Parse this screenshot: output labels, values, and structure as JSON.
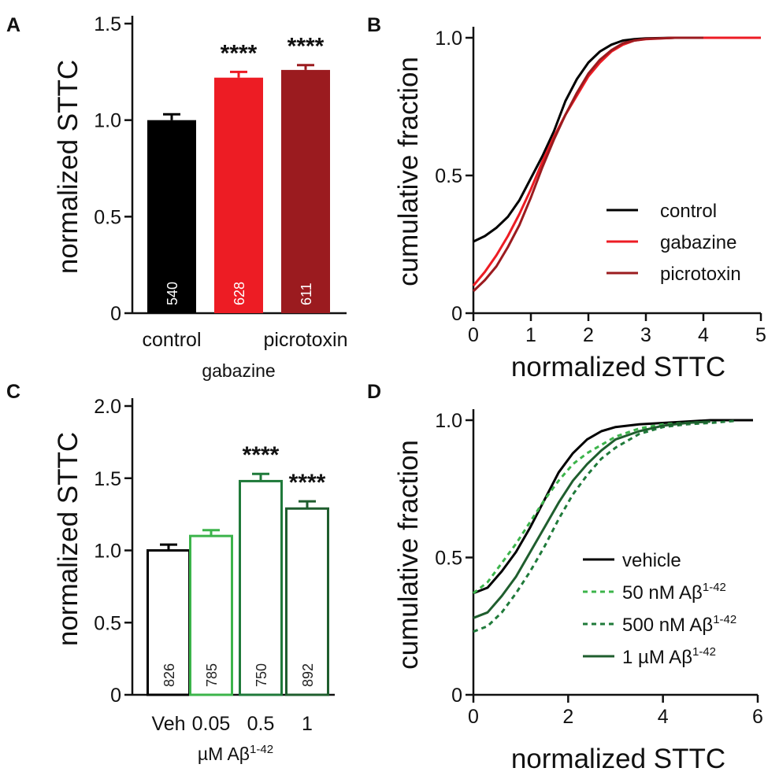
{
  "panels": {
    "A": {
      "letter": "A"
    },
    "B": {
      "letter": "B"
    },
    "C": {
      "letter": "C"
    },
    "D": {
      "letter": "D"
    }
  },
  "chart_data": [
    {
      "type": "bar",
      "id": "A",
      "ylabel": "normalized STTC",
      "ylim": [
        0,
        1.5
      ],
      "yticks": [
        "0",
        "0.5",
        "1.0",
        "1.5"
      ],
      "yticks_values": [
        0,
        0.5,
        1.0,
        1.5
      ],
      "categories": [
        "control",
        "gabazine",
        "picrotoxin"
      ],
      "category_label_rows": [
        "top",
        "bottom",
        "top"
      ],
      "values": [
        1.0,
        1.22,
        1.26
      ],
      "errors": [
        0.03,
        0.03,
        0.025
      ],
      "n_labels": [
        "540",
        "628",
        "611"
      ],
      "significance": [
        "",
        "****",
        "****"
      ],
      "colors": [
        "#000000",
        "#ed1c24",
        "#9b1b1f"
      ],
      "filled": [
        true,
        true,
        true
      ]
    },
    {
      "type": "line",
      "id": "B",
      "xlabel": "normalized STTC",
      "ylabel": "cumulative fraction",
      "xlim": [
        0,
        5
      ],
      "ylim": [
        0,
        1
      ],
      "xticks": [
        "0",
        "1",
        "2",
        "3",
        "4",
        "5"
      ],
      "xticks_values": [
        0,
        1,
        2,
        3,
        4,
        5
      ],
      "yticks": [
        "0",
        "0.5",
        "1.0"
      ],
      "yticks_values": [
        0,
        0.5,
        1.0
      ],
      "series": [
        {
          "name": "control",
          "color": "#000000",
          "dash": "",
          "x": [
            0,
            0.2,
            0.4,
            0.6,
            0.8,
            1.0,
            1.2,
            1.4,
            1.6,
            1.8,
            2.0,
            2.2,
            2.4,
            2.6,
            2.8,
            3.0,
            3.5,
            4.0
          ],
          "y": [
            0.26,
            0.28,
            0.31,
            0.35,
            0.41,
            0.49,
            0.57,
            0.66,
            0.77,
            0.85,
            0.91,
            0.95,
            0.975,
            0.99,
            0.995,
            0.998,
            1.0,
            1.0
          ]
        },
        {
          "name": "gabazine",
          "color": "#ed1c24",
          "dash": "",
          "x": [
            0,
            0.2,
            0.4,
            0.6,
            0.8,
            1.0,
            1.2,
            1.4,
            1.6,
            1.8,
            2.0,
            2.2,
            2.4,
            2.6,
            2.8,
            3.0,
            3.5,
            4.0,
            5.0
          ],
          "y": [
            0.1,
            0.15,
            0.21,
            0.28,
            0.36,
            0.45,
            0.55,
            0.64,
            0.72,
            0.79,
            0.86,
            0.91,
            0.95,
            0.975,
            0.99,
            0.995,
            1.0,
            1.0,
            1.0
          ]
        },
        {
          "name": "picrotoxin",
          "color": "#9b1b1f",
          "dash": "",
          "x": [
            0,
            0.2,
            0.4,
            0.6,
            0.8,
            1.0,
            1.2,
            1.4,
            1.6,
            1.8,
            2.0,
            2.2,
            2.4,
            2.6,
            2.8,
            3.0,
            3.5,
            4.0
          ],
          "y": [
            0.08,
            0.12,
            0.17,
            0.24,
            0.32,
            0.42,
            0.53,
            0.63,
            0.72,
            0.8,
            0.87,
            0.92,
            0.955,
            0.98,
            0.99,
            0.996,
            1.0,
            1.0
          ]
        }
      ],
      "legend_position": "right"
    },
    {
      "type": "bar",
      "id": "C",
      "ylabel": "normalized STTC",
      "xlabel_prefix": "µM Aβ",
      "xlabel_superscript": "1-42",
      "ylim": [
        0,
        2.0
      ],
      "yticks": [
        "0",
        "0.5",
        "1.0",
        "1.5",
        "2.0"
      ],
      "yticks_values": [
        0,
        0.5,
        1.0,
        1.5,
        2.0
      ],
      "categories": [
        "Veh",
        "0.05",
        "0.5",
        "1"
      ],
      "values": [
        1.0,
        1.1,
        1.48,
        1.29
      ],
      "errors": [
        0.04,
        0.04,
        0.05,
        0.05
      ],
      "n_labels": [
        "826",
        "785",
        "750",
        "892"
      ],
      "significance": [
        "",
        "",
        "****",
        "****"
      ],
      "colors": [
        "#000000",
        "#3cb44b",
        "#1f7a3a",
        "#1f5e2e"
      ],
      "filled": [
        false,
        false,
        false,
        false
      ]
    },
    {
      "type": "line",
      "id": "D",
      "xlabel": "normalized STTC",
      "ylabel": "cumulative fraction",
      "xlim": [
        0,
        6
      ],
      "ylim": [
        0,
        1
      ],
      "xticks": [
        "0",
        "2",
        "4",
        "6"
      ],
      "xticks_values": [
        0,
        2,
        4,
        6
      ],
      "yticks": [
        "0",
        "0.5",
        "1.0"
      ],
      "yticks_values": [
        0,
        0.5,
        1.0
      ],
      "series": [
        {
          "name": "vehicle",
          "sup": "",
          "color": "#000000",
          "dash": "",
          "x": [
            0,
            0.3,
            0.6,
            0.9,
            1.2,
            1.5,
            1.8,
            2.1,
            2.4,
            2.7,
            3.0,
            3.5,
            4.0,
            4.5,
            5.0,
            5.5,
            5.9
          ],
          "y": [
            0.37,
            0.39,
            0.45,
            0.52,
            0.61,
            0.71,
            0.81,
            0.88,
            0.93,
            0.96,
            0.975,
            0.985,
            0.99,
            0.995,
            1.0,
            1.0,
            1.0
          ]
        },
        {
          "name": "50 nM Aβ",
          "sup": "1-42",
          "color": "#3cb44b",
          "dash": "6,5",
          "x": [
            0,
            0.3,
            0.6,
            0.9,
            1.2,
            1.5,
            1.8,
            2.1,
            2.4,
            2.7,
            3.0,
            3.5,
            4.0,
            4.5,
            5.0
          ],
          "y": [
            0.37,
            0.41,
            0.48,
            0.55,
            0.63,
            0.71,
            0.78,
            0.84,
            0.88,
            0.91,
            0.94,
            0.97,
            0.985,
            0.99,
            0.995
          ]
        },
        {
          "name": "500 nM Aβ",
          "sup": "1-42",
          "color": "#1f7a3a",
          "dash": "6,5",
          "x": [
            0,
            0.3,
            0.6,
            0.9,
            1.2,
            1.5,
            1.8,
            2.1,
            2.4,
            2.7,
            3.0,
            3.5,
            4.0,
            4.5,
            5.0,
            5.5
          ],
          "y": [
            0.23,
            0.25,
            0.3,
            0.37,
            0.45,
            0.54,
            0.64,
            0.73,
            0.8,
            0.86,
            0.9,
            0.95,
            0.975,
            0.985,
            0.99,
            0.997
          ]
        },
        {
          "name": "1 µM Aβ",
          "sup": "1-42",
          "color": "#1f5e2e",
          "dash": "",
          "x": [
            0,
            0.3,
            0.6,
            0.9,
            1.2,
            1.5,
            1.8,
            2.1,
            2.4,
            2.7,
            3.0,
            3.5,
            4.0,
            4.5,
            5.0
          ],
          "y": [
            0.28,
            0.3,
            0.36,
            0.43,
            0.52,
            0.61,
            0.7,
            0.78,
            0.84,
            0.89,
            0.93,
            0.96,
            0.98,
            0.99,
            0.995
          ]
        }
      ],
      "legend_position": "right"
    }
  ]
}
